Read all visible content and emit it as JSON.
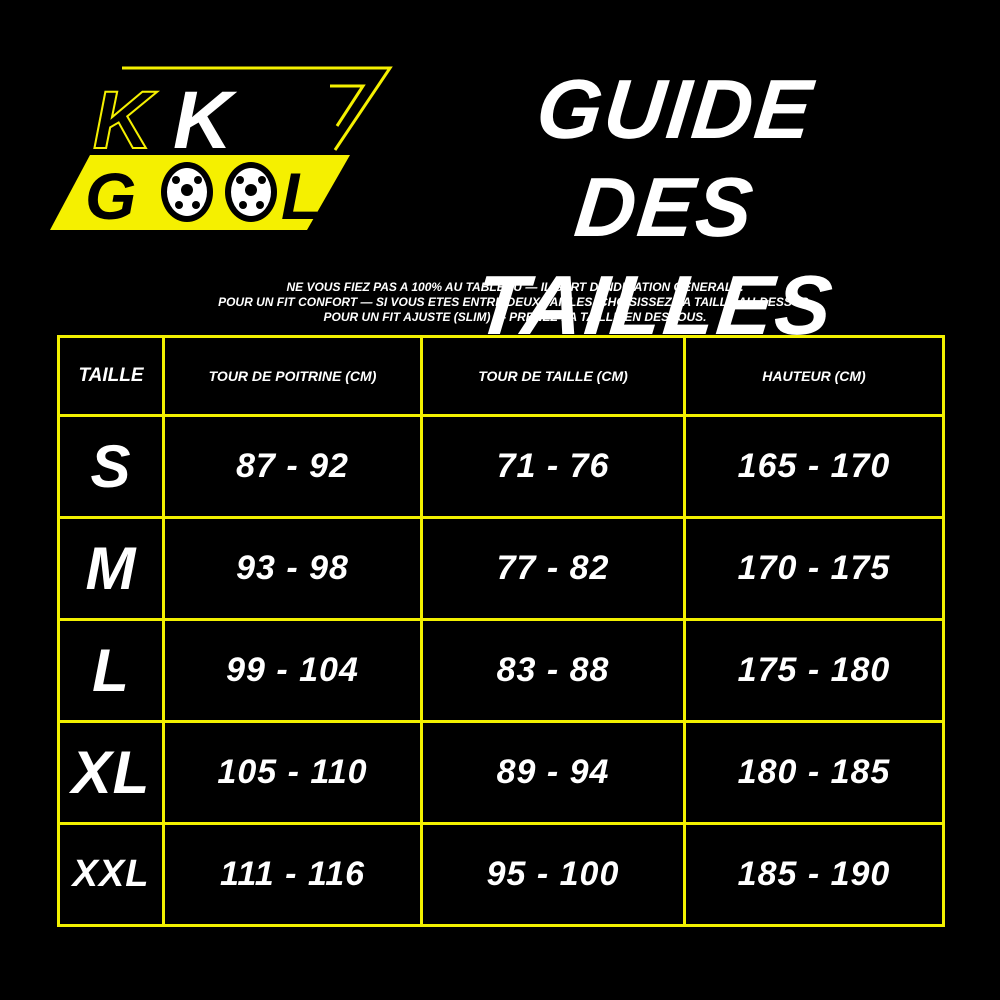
{
  "logo": {
    "line1": "KK",
    "line2": "GOOL",
    "colors": {
      "accent": "#f5f000",
      "text": "#ffffff",
      "background": "#000000"
    }
  },
  "title": {
    "line1": "GUIDE",
    "line2": "DES TAILLES"
  },
  "notes": [
    "NE VOUS FIEZ PAS A 100% AU TABLEAU — IL SERT D'INDICATION GENERALE.",
    "POUR UN FIT CONFORT — SI VOUS ETES ENTRE DEUX TAILLES, CHOISISSEZ LA TAILLE AU-DESSUS.",
    "POUR UN FIT AJUSTE (SLIM) — PRENEZ LA TAILLE EN DESSOUS."
  ],
  "table": {
    "headers": [
      "TAILLE",
      "TOUR DE POITRINE (CM)",
      "TOUR DE TAILLE (CM)",
      "HAUTEUR (CM)"
    ],
    "rows": [
      [
        "S",
        "87 - 92",
        "71 - 76",
        "165 - 170"
      ],
      [
        "M",
        "93 - 98",
        "77 - 82",
        "170 - 175"
      ],
      [
        "L",
        "99 - 104",
        "83 - 88",
        "175 - 180"
      ],
      [
        "XL",
        "105 - 110",
        "89 - 94",
        "180 - 185"
      ],
      [
        "XXL",
        "111 - 116",
        "95 - 100",
        "185 - 190"
      ]
    ]
  }
}
